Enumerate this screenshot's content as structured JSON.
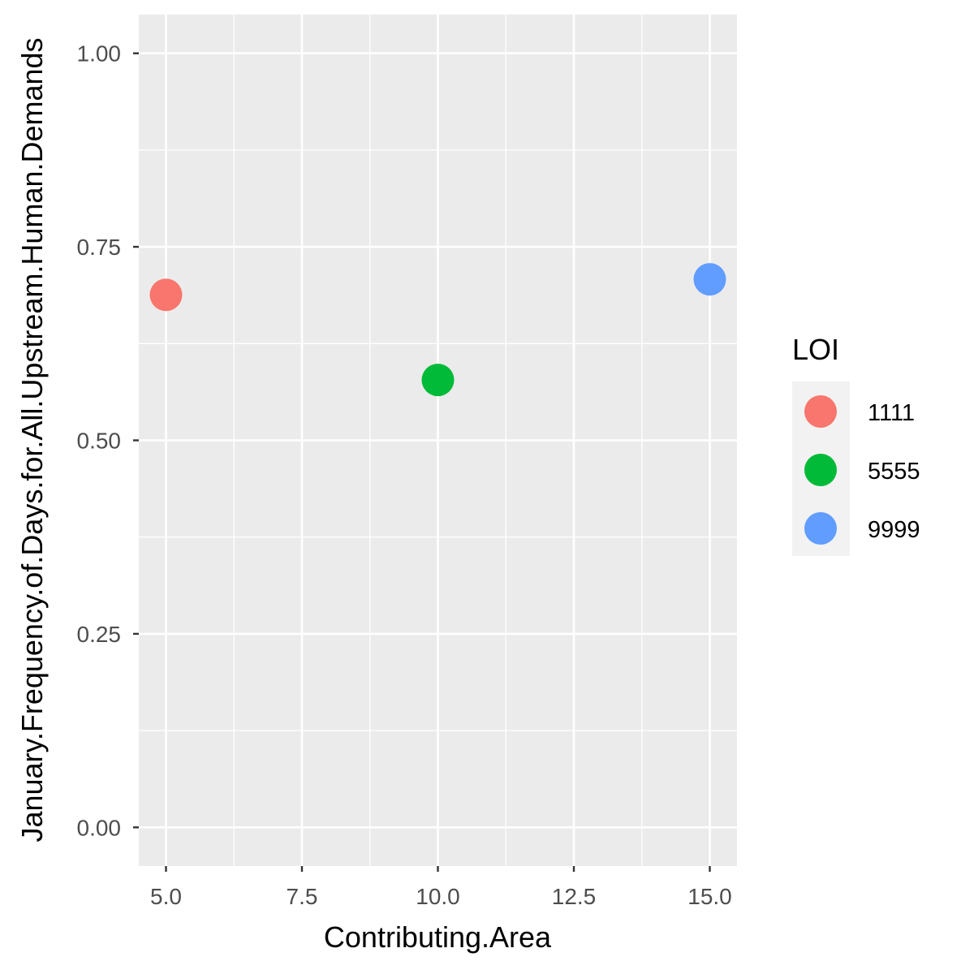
{
  "chart_data": {
    "type": "scatter",
    "title": "",
    "xlabel": "Contributing.Area",
    "ylabel": "January.Frequency.of.Days.for.All.Upstream.Human.Demands",
    "xlim": [
      4.5,
      15.5
    ],
    "ylim": [
      -0.05,
      1.05
    ],
    "x_ticks": [
      "5.0",
      "7.5",
      "10.0",
      "12.5",
      "15.0"
    ],
    "x_tick_values": [
      5,
      7.5,
      10,
      12.5,
      15
    ],
    "y_ticks": [
      "0.00",
      "0.25",
      "0.50",
      "0.75",
      "1.00"
    ],
    "y_tick_values": [
      0,
      0.25,
      0.5,
      0.75,
      1.0
    ],
    "grid": true,
    "legend": {
      "title": "LOI",
      "placement": "right",
      "entries": [
        {
          "label": "1111",
          "color": "#F8766D"
        },
        {
          "label": "5555",
          "color": "#00BA38"
        },
        {
          "label": "9999",
          "color": "#619CFF"
        }
      ]
    },
    "points": [
      {
        "x": 5,
        "y": 0.688,
        "group": "1111",
        "color": "#F8766D"
      },
      {
        "x": 10,
        "y": 0.578,
        "group": "5555",
        "color": "#00BA38"
      },
      {
        "x": 15,
        "y": 0.708,
        "group": "9999",
        "color": "#619CFF"
      }
    ]
  },
  "colors": {
    "panel_background": "#EBEBEB",
    "grid_line": "#FFFFFF",
    "tick_text": "#4D4D4D"
  }
}
